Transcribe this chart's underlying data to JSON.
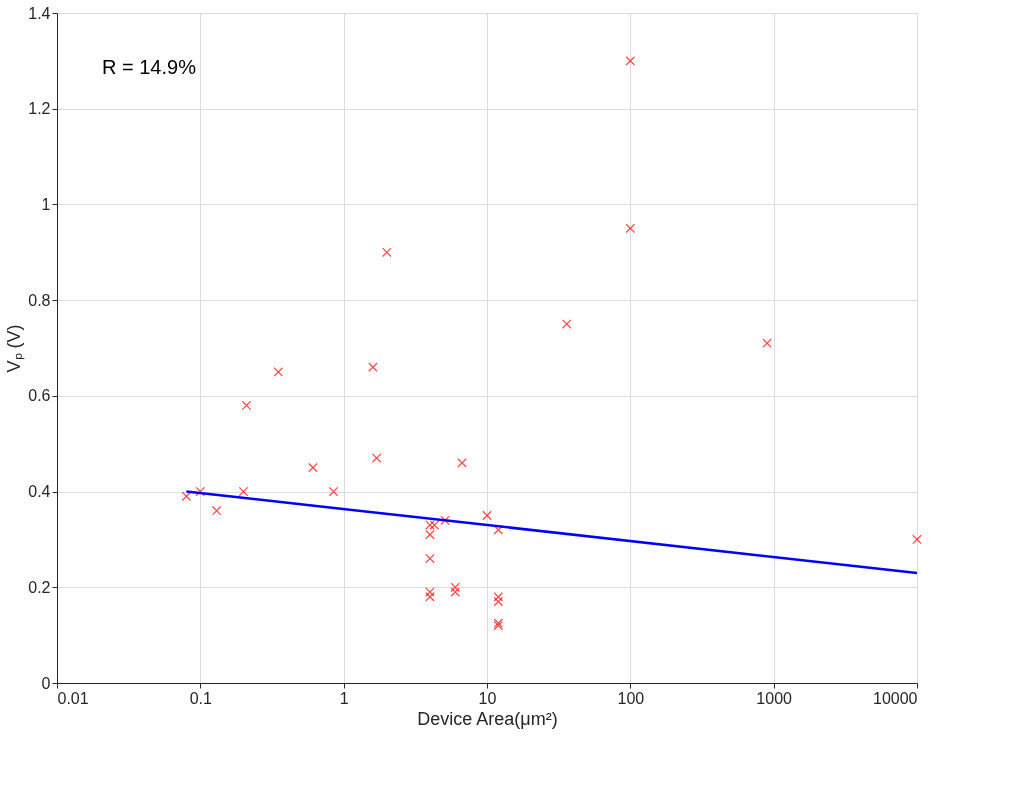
{
  "chart_data": {
    "type": "scatter",
    "xlabel": "Device Area(μm²)",
    "ylabel": "Vₚ (V)",
    "annotations": [
      "R = 14.9%"
    ],
    "log": "x",
    "grid": true,
    "xlim": [
      0.01,
      10000
    ],
    "xticks": [
      0.01,
      0.1,
      1,
      10,
      100,
      1000,
      10000
    ],
    "ylim": [
      0,
      1.4
    ],
    "yticks": [
      0,
      0.2,
      0.4,
      0.6,
      0.8,
      1,
      1.2,
      1.4
    ],
    "series": [
      {
        "color": "#ff0000",
        "marker": "cross",
        "x": [
          0.08,
          0.1,
          0.13,
          0.2,
          0.21,
          0.35,
          0.61,
          0.85,
          1.6,
          1.7,
          2.0,
          4,
          4,
          4,
          4,
          4,
          4.3,
          5.1,
          6,
          6,
          6.7,
          10,
          12,
          12,
          12,
          12,
          12,
          36,
          100,
          100,
          900,
          10000
        ],
        "values": [
          0.39,
          0.4,
          0.36,
          0.4,
          0.58,
          0.65,
          0.45,
          0.4,
          0.66,
          0.47,
          0.9,
          0.33,
          0.31,
          0.26,
          0.19,
          0.18,
          0.33,
          0.34,
          0.2,
          0.19,
          0.46,
          0.35,
          0.32,
          0.18,
          0.17,
          0.125,
          0.12,
          0.75,
          1.3,
          0.95,
          0.71,
          0.3
        ]
      },
      {
        "type": "line",
        "color": "#0000ff",
        "line_style": "solid",
        "x": [
          0.08,
          10000
        ],
        "values": [
          0.4,
          0.23
        ]
      }
    ]
  }
}
